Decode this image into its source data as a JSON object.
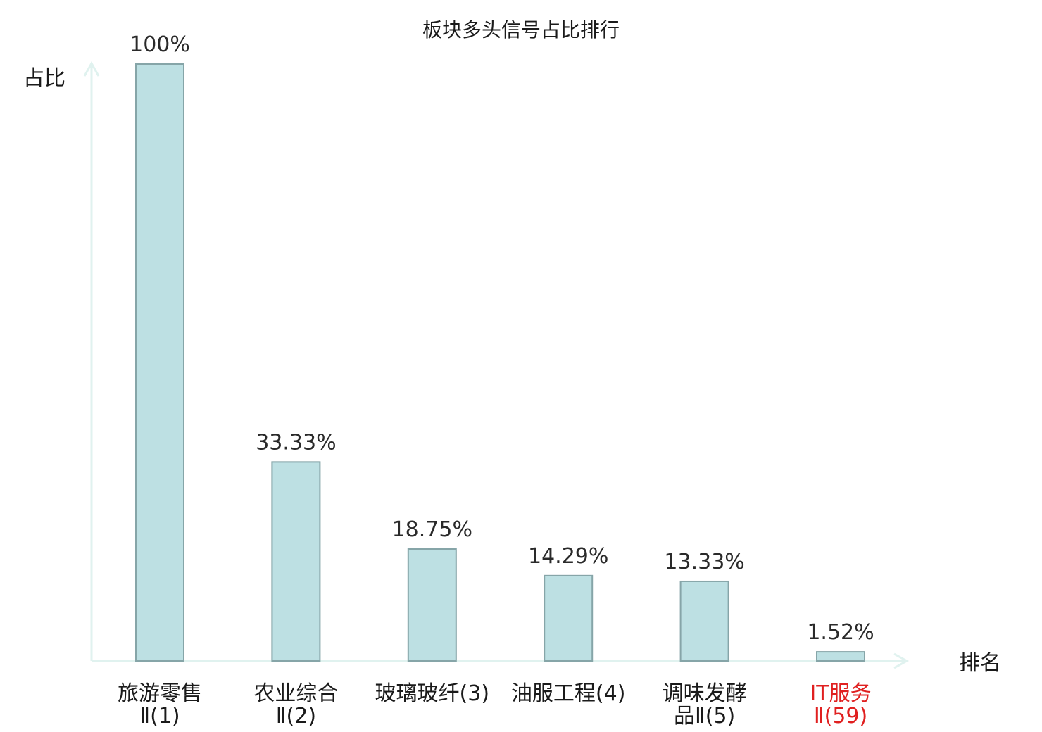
{
  "chart_data": {
    "type": "bar",
    "title": "板块多头信号占比排行",
    "ylabel": "占比",
    "xlabel": "排名",
    "ylim": [
      0,
      100
    ],
    "grid": false,
    "legend": "none",
    "categories": [
      [
        "旅游零售",
        "Ⅱ(1)"
      ],
      [
        "农业综合",
        "Ⅱ(2)"
      ],
      [
        "玻璃玻纤(3)"
      ],
      [
        "油服工程(4)"
      ],
      [
        "调味发酵",
        "品Ⅱ(5)"
      ],
      [
        "IT服务",
        "Ⅱ(59)"
      ]
    ],
    "values": [
      100,
      33.33,
      18.75,
      14.29,
      13.33,
      1.52
    ],
    "value_labels": [
      "100%",
      "33.33%",
      "18.75%",
      "14.29%",
      "13.33%",
      "1.52%"
    ],
    "highlight_index": 5,
    "colors": {
      "bar_fill": "#bde0e3",
      "bar_stroke": "#86a5a8",
      "axis": "#e0f2ef",
      "text": "#2a2a2a",
      "label_text": "#1a1a1a",
      "highlight_text": "#e02020"
    }
  }
}
